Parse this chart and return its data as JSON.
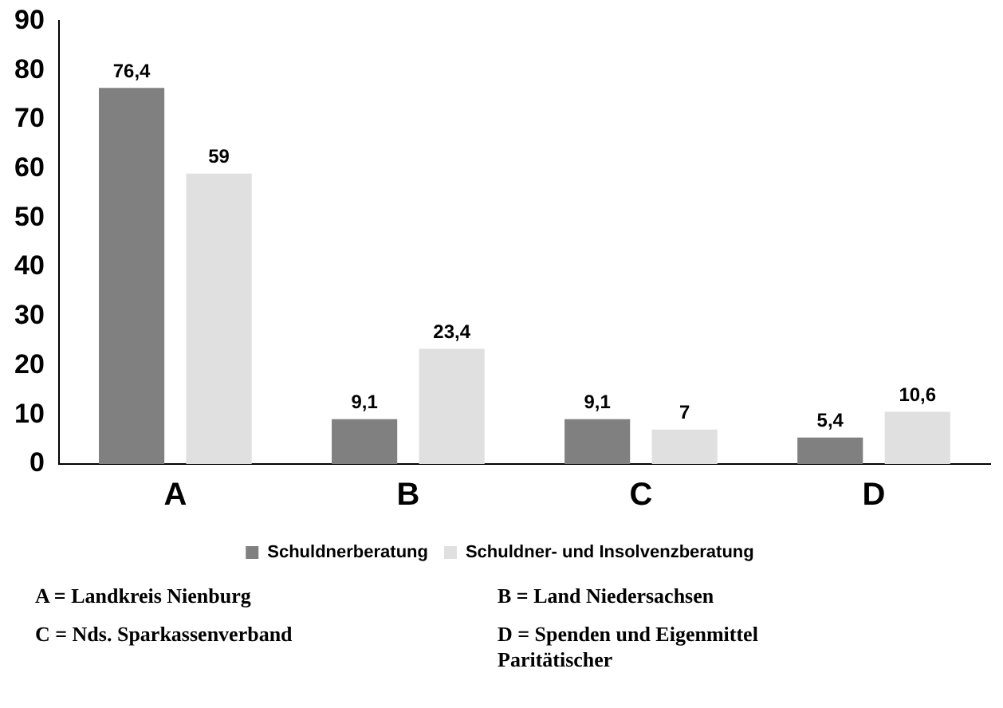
{
  "chart_data": {
    "type": "bar",
    "categories": [
      "A",
      "B",
      "C",
      "D"
    ],
    "series": [
      {
        "name": "Schuldnerberatung",
        "color": "#808080",
        "values": [
          76.4,
          9.1,
          9.1,
          5.4
        ],
        "value_labels": [
          "76,4",
          "9,1",
          "9,1",
          "5,4"
        ]
      },
      {
        "name": "Schuldner- und Insolvenzberatung",
        "color": "#e0e0e0",
        "values": [
          59,
          23.4,
          7,
          10.6
        ],
        "value_labels": [
          "59",
          "23,4",
          "7",
          "10,6"
        ]
      }
    ],
    "ylim": [
      0,
      90
    ],
    "yticks": [
      0,
      10,
      20,
      30,
      40,
      50,
      60,
      70,
      80,
      90
    ],
    "legend": "bottom",
    "annotations": [
      "A = Landkreis Nienburg",
      "B = Land Niedersachsen",
      "C = Nds. Sparkassenverband",
      "D = Spenden und Eigenmittel Paritätischer"
    ]
  }
}
